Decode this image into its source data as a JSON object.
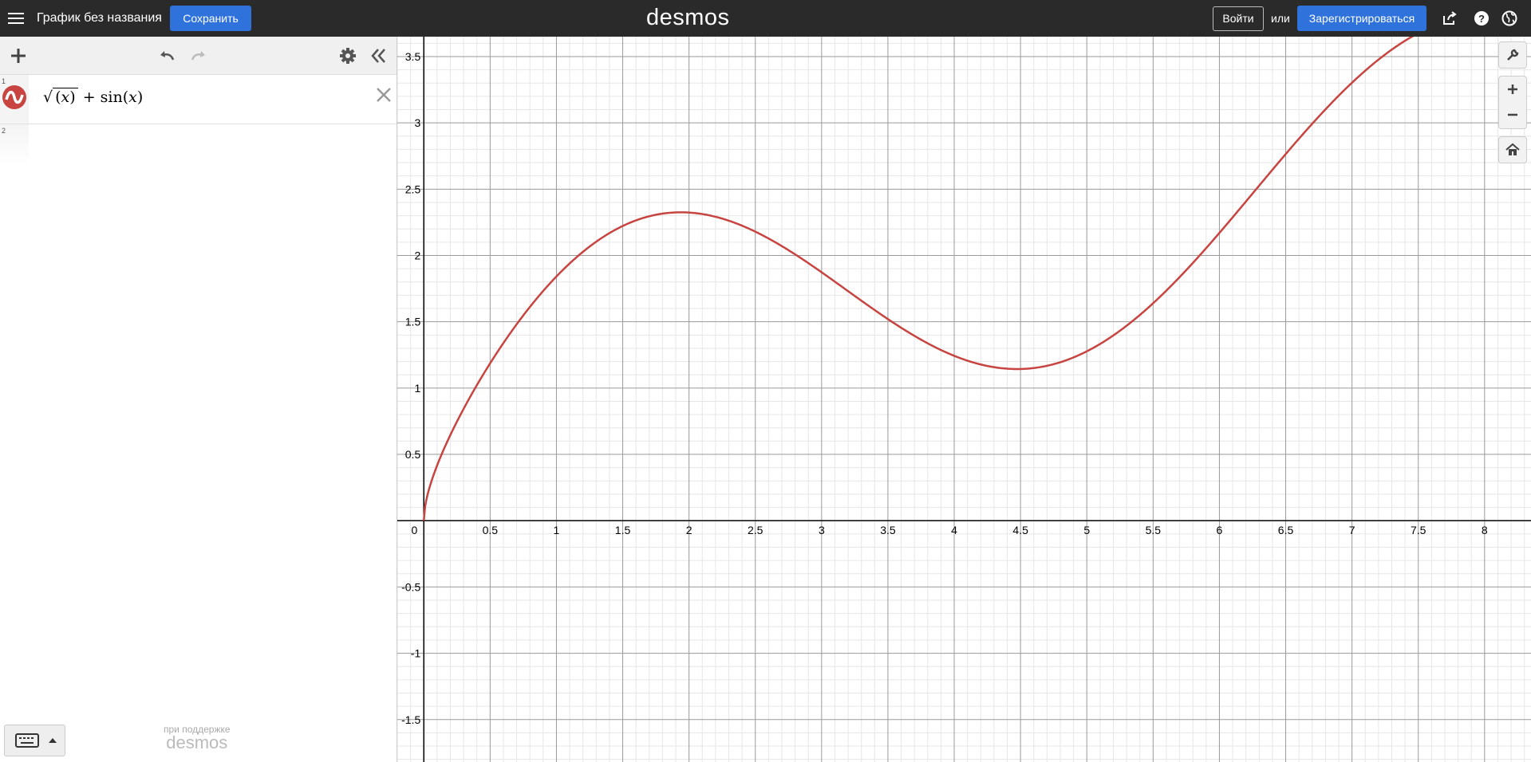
{
  "topbar": {
    "graph_title": "График без названия",
    "save_label": "Сохранить",
    "logo": "desmos",
    "login_label": "Войти",
    "or_text": "или",
    "signup_label": "Зарегистрироваться",
    "icons": [
      "share-icon",
      "help-icon",
      "language-icon"
    ]
  },
  "expression_panel": {
    "toolbar_icons": [
      "add-icon",
      "undo-icon",
      "redo-icon",
      "settings-icon",
      "collapse-icon"
    ],
    "expressions": [
      {
        "number": "1",
        "latex": "\\sqrt{(x)} + \\sin(x)",
        "color": "#c74440"
      },
      {
        "number": "2",
        "latex": ""
      }
    ],
    "powered_by_label": "при поддержке",
    "powered_by_logo": "desmos"
  },
  "graph": {
    "x_range": [
      -0.2,
      8.35
    ],
    "y_range": [
      -1.82,
      3.65
    ],
    "x_tick_labels": [
      "0",
      "0.5",
      "1",
      "1.5",
      "2",
      "2.5",
      "3",
      "3.5",
      "4",
      "4.5",
      "5",
      "5.5",
      "6",
      "6.5",
      "7",
      "7.5",
      "8"
    ],
    "y_tick_labels": [
      "-1.5",
      "-1",
      "-0.5",
      "0.5",
      "1",
      "1.5",
      "2",
      "2.5",
      "3",
      "3.5"
    ],
    "curve_color": "#c74440",
    "controls": [
      "wrench-icon",
      "zoom-in-icon",
      "zoom-out-icon",
      "home-icon"
    ]
  },
  "chart_data": {
    "type": "line",
    "title": "",
    "xlabel": "",
    "ylabel": "",
    "xlim": [
      -0.2,
      8.35
    ],
    "ylim": [
      -1.82,
      3.65
    ],
    "grid": true,
    "series": [
      {
        "name": "\\sqrt{(x)} + \\sin(x)",
        "color": "#c74440",
        "x": [
          0,
          0.25,
          0.5,
          1,
          1.5,
          1.9,
          2.5,
          3,
          3.5,
          4,
          4.5,
          5,
          5.5,
          6,
          6.5,
          7,
          7.5
        ],
        "y": [
          0,
          0.75,
          1.19,
          1.84,
          2.22,
          2.32,
          2.18,
          1.87,
          1.52,
          1.24,
          1.14,
          1.28,
          1.64,
          2.17,
          2.76,
          3.3,
          3.68
        ]
      }
    ]
  }
}
